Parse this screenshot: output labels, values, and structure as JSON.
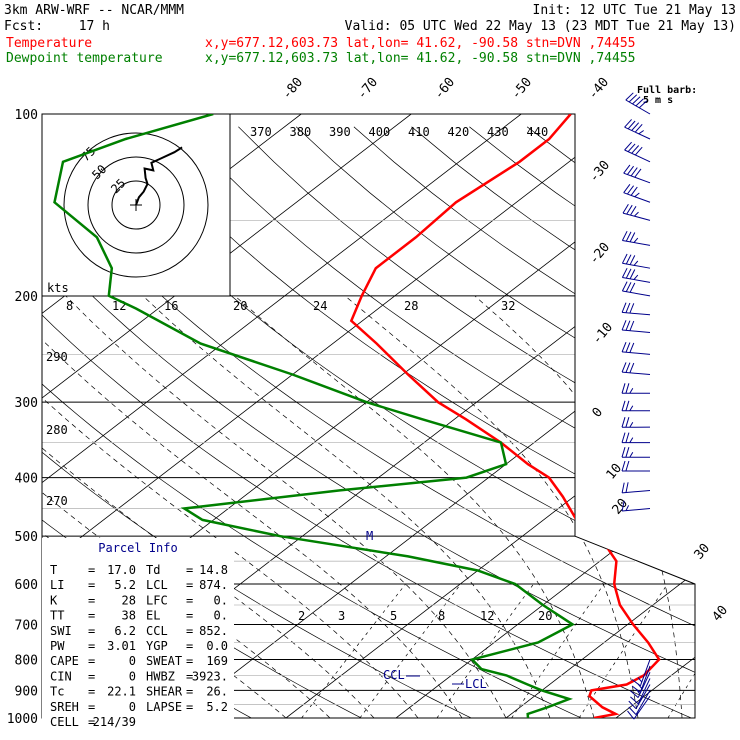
{
  "header": {
    "model": "3km ARW-WRF -- NCAR/MMM",
    "init": "Init: 12 UTC Tue 21 May 13",
    "fcst_label": "Fcst:",
    "fcst_value": "17 h",
    "valid": "Valid: 05 UTC Wed 22 May 13 (23 MDT Tue 21 May 13)"
  },
  "legend": [
    {
      "name": "Temperature",
      "info": "x,y=677.12,603.73   lat,lon= 41.62, -90.58  stn=DVN ,74455",
      "color": "#ff0000"
    },
    {
      "name": "Dewpoint temperature",
      "info": "x,y=677.12,603.73   lat,lon= 41.62, -90.58  stn=DVN ,74455",
      "color": "#008000"
    }
  ],
  "wind_note": {
    "line1": "Full barb:",
    "line2": "5 m s"
  },
  "hodograph": {
    "ring_labels": [
      "75",
      "50",
      "25"
    ],
    "kts_label": "kts"
  },
  "parcel_info": {
    "title": "Parcel Info",
    "rows": [
      {
        "k1": "T",
        "v1": "17.0",
        "k2": "Td",
        "v2": "14.8"
      },
      {
        "k1": "LI",
        "v1": "5.2",
        "k2": "LCL",
        "v2": "874."
      },
      {
        "k1": "K",
        "v1": "28",
        "k2": "LFC",
        "v2": "0."
      },
      {
        "k1": "TT",
        "v1": "38",
        "k2": "EL",
        "v2": "0."
      },
      {
        "k1": "SWI",
        "v1": "6.2",
        "k2": "CCL",
        "v2": "852."
      },
      {
        "k1": "PW",
        "v1": "3.01",
        "k2": "YGP",
        "v2": "0.0"
      },
      {
        "k1": "CAPE",
        "v1": "0",
        "k2": "SWEAT",
        "v2": "169"
      },
      {
        "k1": "CIN",
        "v1": "0",
        "k2": "HWBZ",
        "v2": "3923."
      },
      {
        "k1": "Tc",
        "v1": "22.1",
        "k2": "SHEAR",
        "v2": "26."
      },
      {
        "k1": "SREH",
        "v1": "0",
        "k2": "LAPSE",
        "v2": "5.2"
      },
      {
        "k1": "CELL",
        "v1": "214/39",
        "k2": "",
        "v2": ""
      }
    ]
  },
  "chart_data": {
    "type": "line",
    "title": "",
    "pressure_levels": [
      100,
      200,
      300,
      400,
      500,
      600,
      700,
      800,
      900,
      1000
    ],
    "pressure_labels": [
      "100",
      "200",
      "300",
      "400",
      "500",
      "600",
      "700",
      "800",
      "900",
      "1000"
    ],
    "isotherm_labels_top": [
      "-80",
      "-70",
      "-60",
      "-50",
      "-40"
    ],
    "isotherm_labels_right": [
      "-30",
      "-20",
      "-10",
      "0",
      "10",
      "20",
      "30",
      "40"
    ],
    "theta_labels_top": [
      "370",
      "380",
      "390",
      "400",
      "410",
      "420",
      "430",
      "440"
    ],
    "mixing_ratio_labels_upper": [
      "8",
      "12",
      "16",
      "20",
      "24",
      "28",
      "32"
    ],
    "mixing_ratio_labels_lower": [
      "2",
      "3",
      "5",
      "8",
      "12",
      "20"
    ],
    "theta_labels_left": [
      "290",
      "280",
      "270"
    ],
    "annotations": [
      "M",
      "CCL",
      "LCL"
    ],
    "series": [
      {
        "name": "Temperature",
        "color": "#ff0000",
        "points": [
          [
            1000,
            18.0
          ],
          [
            985,
            19.5
          ],
          [
            960,
            17.5
          ],
          [
            920,
            15.0
          ],
          [
            900,
            14.5
          ],
          [
            880,
            17.0
          ],
          [
            850,
            17.5
          ],
          [
            800,
            17.0
          ],
          [
            750,
            14.0
          ],
          [
            700,
            10.5
          ],
          [
            650,
            7.0
          ],
          [
            600,
            4.0
          ],
          [
            550,
            1.5
          ],
          [
            500,
            -3.0
          ],
          [
            470,
            -7.0
          ],
          [
            430,
            -11.0
          ],
          [
            400,
            -14.5
          ],
          [
            380,
            -18.0
          ],
          [
            350,
            -23.0
          ],
          [
            320,
            -29.0
          ],
          [
            300,
            -33.5
          ],
          [
            270,
            -39.5
          ],
          [
            240,
            -46.0
          ],
          [
            220,
            -51.0
          ],
          [
            200,
            -53.0
          ],
          [
            180,
            -55.0
          ],
          [
            160,
            -55.0
          ],
          [
            140,
            -55.5
          ],
          [
            120,
            -54.5
          ],
          [
            110,
            -54.5
          ],
          [
            100,
            -55.5
          ]
        ]
      },
      {
        "name": "Dewpoint temperature",
        "color": "#008000",
        "points": [
          [
            1000,
            12.0
          ],
          [
            985,
            11.5
          ],
          [
            960,
            12.5
          ],
          [
            930,
            13.5
          ],
          [
            900,
            10.0
          ],
          [
            880,
            8.0
          ],
          [
            850,
            5.0
          ],
          [
            830,
            2.0
          ],
          [
            800,
            0.0
          ],
          [
            750,
            4.0
          ],
          [
            700,
            5.0
          ],
          [
            650,
            0.0
          ],
          [
            600,
            -5.0
          ],
          [
            570,
            -10.0
          ],
          [
            540,
            -18.0
          ],
          [
            500,
            -32.0
          ],
          [
            470,
            -41.0
          ],
          [
            450,
            -44.0
          ],
          [
            420,
            -32.0
          ],
          [
            400,
            -22.0
          ],
          [
            380,
            -20.0
          ],
          [
            350,
            -23.0
          ],
          [
            320,
            -33.0
          ],
          [
            300,
            -40.0
          ],
          [
            270,
            -50.0
          ],
          [
            240,
            -62.0
          ],
          [
            210,
            -72.0
          ],
          [
            200,
            -76.0
          ],
          [
            180,
            -79.0
          ],
          [
            160,
            -84.0
          ],
          [
            140,
            -92.0
          ],
          [
            120,
            -96.0
          ],
          [
            110,
            -93.0
          ],
          [
            100,
            -88.0
          ]
        ]
      }
    ],
    "wind_barbs": [
      {
        "p": 100,
        "dir": 300,
        "spd": 50
      },
      {
        "p": 110,
        "dir": 295,
        "spd": 45
      },
      {
        "p": 120,
        "dir": 295,
        "spd": 40
      },
      {
        "p": 130,
        "dir": 290,
        "spd": 40
      },
      {
        "p": 140,
        "dir": 290,
        "spd": 35
      },
      {
        "p": 150,
        "dir": 285,
        "spd": 35
      },
      {
        "p": 165,
        "dir": 280,
        "spd": 35
      },
      {
        "p": 180,
        "dir": 280,
        "spd": 35
      },
      {
        "p": 190,
        "dir": 280,
        "spd": 35
      },
      {
        "p": 200,
        "dir": 280,
        "spd": 30
      },
      {
        "p": 215,
        "dir": 275,
        "spd": 30
      },
      {
        "p": 230,
        "dir": 275,
        "spd": 30
      },
      {
        "p": 250,
        "dir": 275,
        "spd": 30
      },
      {
        "p": 270,
        "dir": 275,
        "spd": 30
      },
      {
        "p": 290,
        "dir": 270,
        "spd": 25
      },
      {
        "p": 310,
        "dir": 270,
        "spd": 25
      },
      {
        "p": 330,
        "dir": 270,
        "spd": 25
      },
      {
        "p": 350,
        "dir": 270,
        "spd": 25
      },
      {
        "p": 370,
        "dir": 270,
        "spd": 25
      },
      {
        "p": 390,
        "dir": 270,
        "spd": 20
      },
      {
        "p": 420,
        "dir": 265,
        "spd": 20
      },
      {
        "p": 450,
        "dir": 265,
        "spd": 15
      },
      {
        "p": 800,
        "dir": 200,
        "spd": 15
      },
      {
        "p": 820,
        "dir": 200,
        "spd": 15
      },
      {
        "p": 840,
        "dir": 205,
        "spd": 15
      },
      {
        "p": 860,
        "dir": 205,
        "spd": 10
      },
      {
        "p": 880,
        "dir": 210,
        "spd": 10
      },
      {
        "p": 900,
        "dir": 210,
        "spd": 10
      },
      {
        "p": 920,
        "dir": 215,
        "spd": 10
      }
    ],
    "hodograph_trace": [
      [
        0,
        0
      ],
      [
        3,
        8
      ],
      [
        8,
        14
      ],
      [
        12,
        22
      ],
      [
        10,
        28
      ],
      [
        9,
        38
      ],
      [
        18,
        36
      ],
      [
        16,
        44
      ],
      [
        25,
        48
      ],
      [
        40,
        55
      ],
      [
        48,
        60
      ]
    ]
  }
}
